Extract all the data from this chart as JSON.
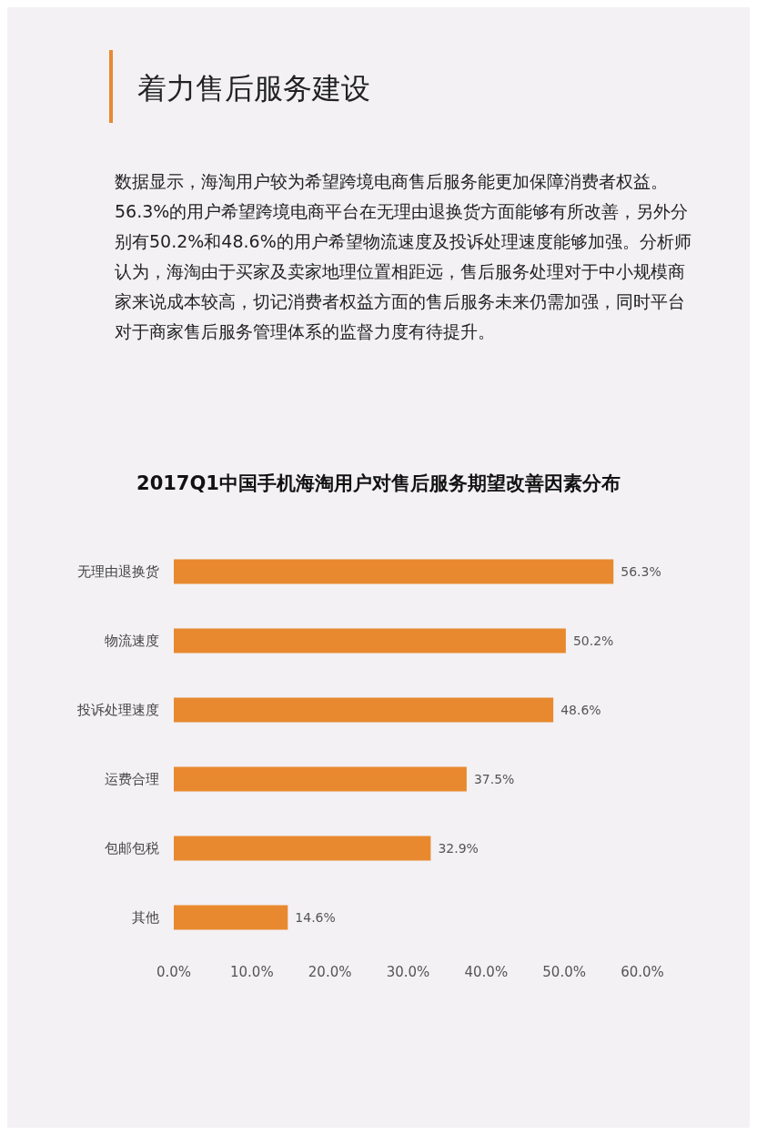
{
  "chart_data": {
    "type": "bar",
    "orientation": "horizontal",
    "title": "2017Q1中国手机海淘用户对售后服务期望改善因素分布",
    "annotations": [
      "着力售后服务建设",
      "数据显示，海淘用户较为希望跨境电商售后服务能更加保障消费者权益。56.3%的用户希望跨境电商平台在无理由退换货方面能够有所改善，另外分别有50.2%和48.6%的用户希望物流速度及投诉处理速度能够加强。分析师认为，海淘由于买家及卖家地理位置相距远，售后服务处理对于中小规模商家来说成本较高，切记消费者权益方面的售后服务未来仍需加强，同时平台对于商家售后服务管理体系的监督力度有待提升。"
    ],
    "categories": [
      "无理由退换货",
      "物流速度",
      "投诉处理速度",
      "运费合理",
      "包邮包税",
      "其他"
    ],
    "values": [
      56.3,
      50.2,
      48.6,
      37.5,
      32.9,
      14.6
    ],
    "value_labels": [
      "56.3%",
      "50.2%",
      "48.6%",
      "37.5%",
      "32.9%",
      "14.6%"
    ],
    "color": "#e8892f",
    "xlim": [
      0,
      60
    ],
    "xticks": [
      {
        "value": 0,
        "label": "0.0%"
      },
      {
        "value": 10,
        "label": "10.0%"
      },
      {
        "value": 20,
        "label": "20.0%"
      },
      {
        "value": 30,
        "label": "30.0%"
      },
      {
        "value": 40,
        "label": "40.0%"
      },
      {
        "value": 50,
        "label": "50.0%"
      },
      {
        "value": 60,
        "label": "60.0%"
      }
    ],
    "grid": false
  }
}
